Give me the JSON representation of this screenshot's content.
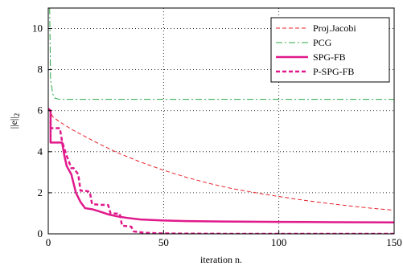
{
  "chart_data": {
    "type": "line",
    "xlabel": "iteration n.",
    "ylabel_base": "||e||",
    "ylabel_sub": "2",
    "xlim": [
      0,
      150
    ],
    "ylim": [
      0,
      11
    ],
    "xticks": [
      0,
      50,
      100,
      150
    ],
    "yticks": [
      0,
      2,
      4,
      6,
      8,
      10
    ],
    "grid": true,
    "legend_position": "top-right",
    "series": [
      {
        "name": "Proj.Jacobi",
        "color": "#e8222a",
        "dash": "dashed",
        "width": 1,
        "x": [
          0,
          2,
          5,
          10,
          20,
          30,
          40,
          50,
          60,
          70,
          80,
          90,
          100,
          110,
          120,
          130,
          140,
          150
        ],
        "y": [
          6.1,
          5.7,
          5.45,
          5.1,
          4.5,
          3.95,
          3.5,
          3.1,
          2.75,
          2.45,
          2.2,
          2.0,
          1.82,
          1.65,
          1.5,
          1.37,
          1.25,
          1.15
        ]
      },
      {
        "name": "PCG",
        "color": "#2aa84a",
        "dash": "dashdot",
        "width": 1,
        "x": [
          0.6,
          1,
          2,
          3,
          5,
          10,
          20,
          50,
          100,
          150
        ],
        "y": [
          11,
          7.5,
          6.8,
          6.6,
          6.55,
          6.55,
          6.55,
          6.55,
          6.55,
          6.55
        ]
      },
      {
        "name": "SPG-FB",
        "color": "#e0198b",
        "dash": "solid",
        "width": 2.5,
        "x": [
          0,
          1,
          1,
          6,
          7,
          8,
          10,
          12,
          14,
          16,
          19,
          22,
          26,
          30,
          34,
          40,
          50,
          60,
          75,
          100,
          125,
          150
        ],
        "y": [
          6.1,
          6.0,
          4.45,
          4.45,
          3.8,
          3.3,
          2.9,
          2.0,
          1.55,
          1.25,
          1.2,
          1.1,
          0.95,
          0.85,
          0.78,
          0.7,
          0.65,
          0.62,
          0.6,
          0.58,
          0.57,
          0.56
        ]
      },
      {
        "name": "P-SPG-FB",
        "color": "#e0198b",
        "dash": "dashed",
        "width": 2.5,
        "x": [
          0,
          1,
          1,
          5,
          6,
          8,
          10,
          11,
          13,
          14,
          16,
          18,
          19,
          22,
          26,
          27,
          31,
          32,
          36,
          37,
          42,
          50,
          60,
          80,
          100,
          150
        ],
        "y": [
          6.1,
          6.0,
          5.15,
          5.15,
          4.5,
          3.8,
          3.2,
          3.2,
          2.9,
          2.1,
          2.1,
          2.05,
          1.45,
          1.42,
          1.4,
          1.0,
          0.98,
          0.4,
          0.35,
          0.12,
          0.05,
          0.02,
          0.01,
          0.0,
          0.0,
          0.0
        ]
      }
    ]
  }
}
